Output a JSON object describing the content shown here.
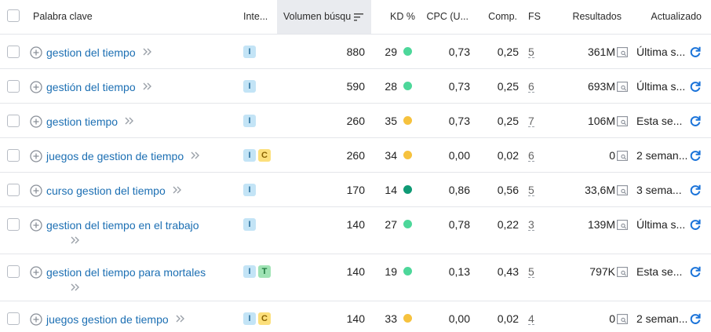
{
  "header": {
    "keyword": "Palabra clave",
    "intent": "Inte...",
    "volume": "Volumen búsqu",
    "kd": "KD %",
    "cpc": "CPC (U...",
    "comp": "Comp.",
    "fs": "FS",
    "results": "Resultados",
    "updated": "Actualizado"
  },
  "colors": {
    "link": "#1c6fb3",
    "kd_green": "#4dd79a",
    "kd_yellow": "#f6c23e",
    "kd_dark_green": "#0f9a75",
    "refresh": "#1a73d9"
  },
  "rows": [
    {
      "keyword": "gestion del tiempo",
      "intents": [
        "I"
      ],
      "volume": "880",
      "kd": "29",
      "kd_color": "#4dd79a",
      "cpc": "0,73",
      "comp": "0,25",
      "fs": "5",
      "results": "361M",
      "updated": "Última s..."
    },
    {
      "keyword": "gestión del tiempo",
      "intents": [
        "I"
      ],
      "volume": "590",
      "kd": "28",
      "kd_color": "#4dd79a",
      "cpc": "0,73",
      "comp": "0,25",
      "fs": "6",
      "results": "693M",
      "updated": "Última s..."
    },
    {
      "keyword": "gestion tiempo",
      "intents": [
        "I"
      ],
      "volume": "260",
      "kd": "35",
      "kd_color": "#f6c23e",
      "cpc": "0,73",
      "comp": "0,25",
      "fs": "7",
      "results": "106M",
      "updated": "Esta se..."
    },
    {
      "keyword": "juegos de gestion de tiempo",
      "intents": [
        "I",
        "C"
      ],
      "volume": "260",
      "kd": "34",
      "kd_color": "#f6c23e",
      "cpc": "0,00",
      "comp": "0,02",
      "fs": "6",
      "results": "0",
      "updated": "2 seman..."
    },
    {
      "keyword": "curso gestion del tiempo",
      "intents": [
        "I"
      ],
      "volume": "170",
      "kd": "14",
      "kd_color": "#0f9a75",
      "cpc": "0,86",
      "comp": "0,56",
      "fs": "5",
      "results": "33,6M",
      "updated": "3 sema..."
    },
    {
      "keyword": "gestion del tiempo en el trabajo",
      "intents": [
        "I"
      ],
      "volume": "140",
      "kd": "27",
      "kd_color": "#4dd79a",
      "cpc": "0,78",
      "comp": "0,22",
      "fs": "3",
      "results": "139M",
      "updated": "Última s...",
      "wrap": true
    },
    {
      "keyword": "gestion del tiempo para mortales",
      "intents": [
        "I",
        "T"
      ],
      "volume": "140",
      "kd": "19",
      "kd_color": "#4dd79a",
      "cpc": "0,13",
      "comp": "0,43",
      "fs": "5",
      "results": "797K",
      "updated": "Esta se...",
      "wrap": true
    },
    {
      "keyword": "juegos gestion de tiempo",
      "intents": [
        "I",
        "C"
      ],
      "volume": "140",
      "kd": "33",
      "kd_color": "#f6c23e",
      "cpc": "0,00",
      "comp": "0,02",
      "fs": "4",
      "results": "0",
      "updated": "2 seman..."
    }
  ]
}
